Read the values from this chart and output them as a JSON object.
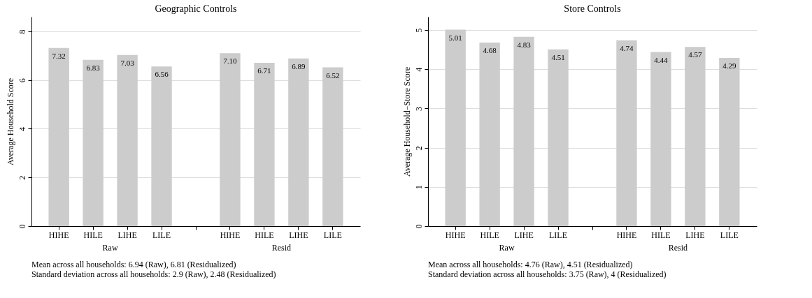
{
  "chart_data": [
    {
      "type": "bar",
      "title": "Geographic Controls",
      "ylabel": "Average Household Score",
      "categories": [
        "HIHE",
        "HILE",
        "LIHE",
        "LILE",
        null,
        "HIHE",
        "HILE",
        "LIHE",
        "LILE"
      ],
      "values": [
        7.32,
        6.83,
        7.03,
        6.56,
        null,
        7.1,
        6.71,
        6.89,
        6.52
      ],
      "value_labels": [
        "7.32",
        "6.83",
        "7.03",
        "6.56",
        null,
        "7.10",
        "6.71",
        "6.89",
        "6.52"
      ],
      "color": "#cccccc",
      "ylim": [
        0,
        8.6
      ],
      "yticks": [
        0,
        2,
        4,
        6,
        8
      ],
      "grid": "y",
      "annotations": [
        "Raw",
        "Resid",
        "Mean across all households: 6.94 (Raw), 6.81 (Residualized)",
        "Standard deviation across all households: 2.9 (Raw), 2.48 (Residualized)"
      ]
    },
    {
      "type": "bar",
      "title": "Store Controls",
      "ylabel": "Average Household−Store Score",
      "categories": [
        "HIHE",
        "HILE",
        "LIHE",
        "LILE",
        null,
        "HIHE",
        "HILE",
        "LIHE",
        "LILE"
      ],
      "values": [
        5.01,
        4.68,
        4.83,
        4.51,
        null,
        4.74,
        4.44,
        4.57,
        4.29
      ],
      "value_labels": [
        "5.01",
        "4.68",
        "4.83",
        "4.51",
        null,
        "4.74",
        "4.44",
        "4.57",
        "4.29"
      ],
      "color": "#cccccc",
      "ylim": [
        0,
        5.34
      ],
      "yticks": [
        0,
        1,
        2,
        3,
        4,
        5
      ],
      "grid": "y",
      "annotations": [
        "Raw",
        "Resid",
        "Mean across all households: 4.76 (Raw), 4.51 (Residualized)",
        "Standard deviation across all households: 3.75 (Raw), 4 (Residualized)"
      ]
    }
  ]
}
